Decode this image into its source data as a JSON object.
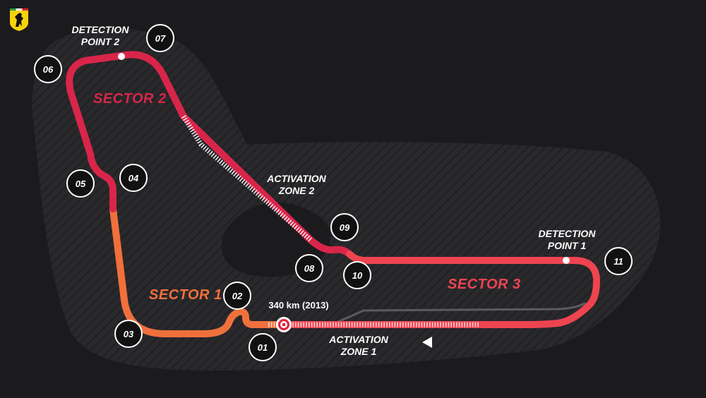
{
  "brand": {
    "logo_icon": "ferrari-prancing-horse-shield-icon",
    "logo_colors": {
      "shield": "#f5d20a",
      "horse": "#111111",
      "stripe_green": "#2a9d3a",
      "stripe_red": "#d9232d"
    }
  },
  "colors": {
    "background": "#1b1b1d",
    "sector1": "#f0703c",
    "sector2": "#d9254a",
    "sector3": "#ee4450",
    "drs_zone": "#ffffff",
    "runoff": "#2e2e31"
  },
  "sectors": [
    {
      "label": "SECTOR 1",
      "color": "#f0703c"
    },
    {
      "label": "SECTOR 2",
      "color": "#d9254a"
    },
    {
      "label": "SECTOR 3",
      "color": "#ee4450"
    }
  ],
  "turns": [
    "01",
    "02",
    "03",
    "04",
    "05",
    "06",
    "07",
    "08",
    "09",
    "10",
    "11"
  ],
  "annotations": {
    "detection_point_2": {
      "line1": "DETECTION",
      "line2": "POINT 2"
    },
    "detection_point_1": {
      "line1": "DETECTION",
      "line2": "POINT 1"
    },
    "activation_zone_2": {
      "line1": "ACTIVATION",
      "line2": "ZONE 2"
    },
    "activation_zone_1": {
      "line1": "ACTIVATION",
      "line2": "ZONE 1"
    },
    "top_speed": "340 km (2013)"
  }
}
